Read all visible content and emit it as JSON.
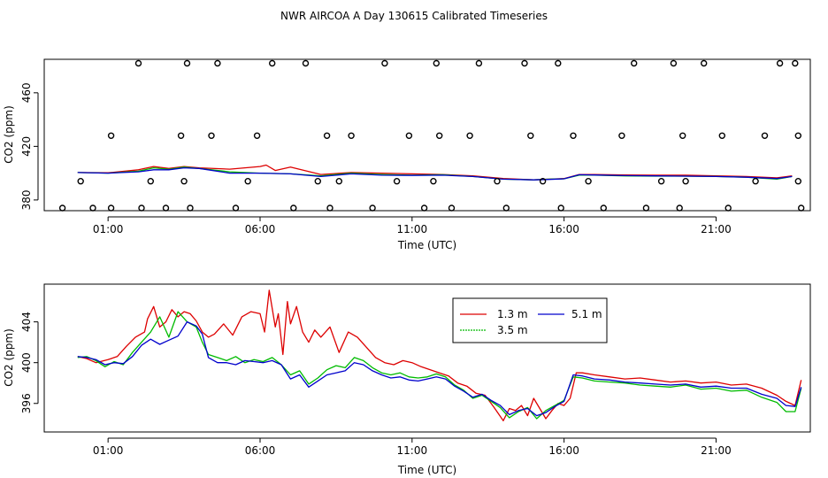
{
  "title": "NWR AIRCOA A  Day 130615  Calibrated Timeseries",
  "colors": {
    "1.3 m": "#dd0000",
    "3.5 m": "#00bb00",
    "5.1 m": "#0000cc",
    "markers": "#000000"
  },
  "chart_data": [
    {
      "type": "line",
      "xlabel": "Time (UTC)",
      "ylabel": "CO2 (ppm)",
      "x_ticks": [
        "01:00",
        "06:00",
        "11:00",
        "16:00",
        "21:00"
      ],
      "x_tick_hours": [
        1,
        6,
        11,
        16,
        21
      ],
      "y_ticks": [
        "380",
        "420",
        "460"
      ],
      "y_tick_values": [
        380,
        420,
        460
      ],
      "xlim": [
        -1.1,
        24.1
      ],
      "ylim": [
        372,
        485
      ],
      "legend": "none",
      "series": [
        {
          "color": "#dd0000",
          "x": [
            0,
            1,
            2,
            2.5,
            3,
            3.5,
            4,
            5,
            6,
            6.2,
            6.5,
            7,
            8,
            9,
            10,
            11,
            12,
            13,
            14,
            15,
            15.5,
            16,
            16.5,
            17,
            18,
            19,
            20,
            21,
            22,
            23,
            23.5
          ],
          "y": [
            400.5,
            400.3,
            402.5,
            405,
            403.5,
            405,
            404,
            403,
            405,
            406,
            402,
            404.5,
            399,
            400.5,
            400,
            399.5,
            399,
            398,
            396,
            395,
            395.5,
            396,
            399,
            399,
            398.7,
            398.5,
            398.5,
            398,
            397.5,
            396.5,
            398
          ]
        },
        {
          "color": "#00bb00",
          "x": [
            0,
            1,
            2,
            2.5,
            3,
            3.5,
            4,
            5,
            6,
            7,
            8,
            9,
            10,
            11,
            12,
            13,
            14,
            15,
            15.5,
            16,
            16.5,
            17,
            18,
            19,
            20,
            21,
            22,
            23,
            23.5
          ],
          "y": [
            400.5,
            400,
            401.5,
            404,
            403,
            404.5,
            403.5,
            401,
            400,
            399.5,
            398,
            400,
            399,
            398.5,
            398.8,
            397.5,
            395.5,
            395,
            395.5,
            395.8,
            398.5,
            398.5,
            398,
            397.8,
            397.8,
            397.5,
            397,
            395.5,
            397.5
          ]
        },
        {
          "color": "#0000cc",
          "x": [
            0,
            1,
            2,
            2.5,
            3,
            3.5,
            4,
            5,
            6,
            7,
            8,
            9,
            10,
            11,
            12,
            13,
            14,
            15,
            15.5,
            16,
            16.5,
            17,
            18,
            19,
            20,
            21,
            22,
            23,
            23.5
          ],
          "y": [
            400.5,
            400,
            401,
            402.5,
            402.5,
            404,
            403.5,
            400,
            400,
            399.5,
            397.5,
            399.5,
            398.5,
            398.3,
            398.5,
            397.5,
            395.5,
            395,
            395.3,
            395.8,
            398.8,
            398.6,
            398.2,
            398,
            397.8,
            397.5,
            397,
            396,
            397.5
          ]
        }
      ],
      "markers": {
        "symbol": "open-circle",
        "color": "#000000",
        "x": [
          -0.5,
          0.1,
          0.5,
          1.1,
          1.1,
          2,
          2.1,
          2.4,
          2.9,
          3.4,
          3.5,
          3.6,
          3.7,
          4.4,
          4.6,
          5.2,
          5.6,
          5.9,
          6.4,
          7.1,
          7.5,
          7.9,
          8.2,
          8.3,
          8.6,
          9,
          9.7,
          10.1,
          10.5,
          10.9,
          11.4,
          11.7,
          11.8,
          11.9,
          12.3,
          12.9,
          13.2,
          13.8,
          14.1,
          14.7,
          14.9,
          15.3,
          15.8,
          15.9,
          16.3,
          16.8,
          17.3,
          17.9,
          18.3,
          18.7,
          19.2,
          19.6,
          19.8,
          19.9,
          20,
          20.6,
          21.2,
          21.4,
          22.3,
          22.6,
          23.1,
          23.6,
          23.7,
          23.7,
          23.8
        ],
        "y": [
          374,
          394,
          374,
          428,
          374,
          482,
          374,
          394,
          374,
          428,
          394,
          482,
          374,
          428,
          482,
          374,
          394,
          428,
          482,
          374,
          482,
          394,
          428,
          374,
          394,
          428,
          374,
          482,
          394,
          428,
          374,
          394,
          482,
          428,
          374,
          428,
          482,
          394,
          374,
          482,
          428,
          394,
          482,
          374,
          428,
          394,
          374,
          428,
          482,
          374,
          394,
          482,
          374,
          428,
          394,
          482,
          428,
          374,
          394,
          428,
          482,
          482,
          428,
          394,
          374
        ]
      }
    },
    {
      "type": "line",
      "xlabel": "Time (UTC)",
      "ylabel": "CO2 (ppm)",
      "x_ticks": [
        "01:00",
        "06:00",
        "11:00",
        "16:00",
        "21:00"
      ],
      "x_tick_hours": [
        1,
        6,
        11,
        16,
        21
      ],
      "y_ticks": [
        "396",
        "400",
        "404"
      ],
      "y_tick_values": [
        396,
        400,
        404
      ],
      "xlim": [
        -1.1,
        24.1
      ],
      "ylim": [
        393.2,
        407.7
      ],
      "legend": "top-center",
      "series": [
        {
          "name": "1.3 m",
          "color": "#dd0000",
          "x": [
            0,
            0.3,
            0.6,
            1,
            1.3,
            1.6,
            1.9,
            2.2,
            2.3,
            2.5,
            2.7,
            2.9,
            3.1,
            3.3,
            3.5,
            3.7,
            3.9,
            4.1,
            4.3,
            4.5,
            4.8,
            5.1,
            5.4,
            5.7,
            6,
            6.15,
            6.3,
            6.5,
            6.6,
            6.75,
            6.9,
            7,
            7.2,
            7.4,
            7.6,
            7.8,
            8,
            8.3,
            8.6,
            8.9,
            9.2,
            9.5,
            9.8,
            10.1,
            10.4,
            10.7,
            11,
            11.3,
            11.6,
            11.9,
            12.2,
            12.5,
            12.8,
            13.1,
            13.4,
            13.7,
            14,
            14.2,
            14.4,
            14.6,
            14.8,
            15,
            15.2,
            15.4,
            15.6,
            15.8,
            16,
            16.2,
            16.4,
            16.6,
            17,
            17.5,
            18,
            18.5,
            19,
            19.5,
            20,
            20.5,
            21,
            21.5,
            22,
            22.5,
            23,
            23.3,
            23.6,
            23.8
          ],
          "y": [
            400.6,
            400.4,
            400,
            400.3,
            400.6,
            401.6,
            402.5,
            403,
            404.3,
            405.5,
            403.5,
            404,
            405.2,
            404.5,
            405,
            404.8,
            404.1,
            403,
            402.5,
            402.8,
            403.8,
            402.7,
            404.5,
            405,
            404.8,
            403,
            407.1,
            403.5,
            404.8,
            400.8,
            406,
            403.8,
            405.5,
            403,
            402,
            403.2,
            402.5,
            403.5,
            401,
            403,
            402.5,
            401.5,
            400.5,
            400,
            399.8,
            400.2,
            400,
            399.6,
            399.3,
            399,
            398.7,
            398,
            397.7,
            397,
            396.8,
            395.6,
            394.3,
            395.5,
            395.3,
            395.8,
            394.8,
            396.5,
            395.5,
            394.5,
            395.3,
            396,
            395.8,
            396.5,
            399,
            399,
            398.8,
            398.6,
            398.4,
            398.5,
            398.3,
            398.1,
            398.2,
            398,
            398.1,
            397.8,
            397.9,
            397.5,
            396.8,
            396.2,
            395.8,
            398.3
          ]
        },
        {
          "name": "3.5 m",
          "color": "#00bb00",
          "x": [
            0,
            0.3,
            0.6,
            0.9,
            1.2,
            1.5,
            1.8,
            2.1,
            2.4,
            2.7,
            3,
            3.3,
            3.6,
            3.9,
            4.1,
            4.3,
            4.6,
            4.9,
            5.2,
            5.5,
            5.8,
            6.1,
            6.4,
            6.7,
            7,
            7.3,
            7.6,
            7.9,
            8.2,
            8.5,
            8.8,
            9.1,
            9.4,
            9.7,
            10,
            10.3,
            10.6,
            10.9,
            11.2,
            11.5,
            11.8,
            12.1,
            12.4,
            12.7,
            13,
            13.3,
            13.6,
            13.9,
            14.2,
            14.5,
            14.8,
            15.1,
            15.4,
            15.7,
            16,
            16.3,
            16.6,
            17,
            17.5,
            18,
            18.5,
            19,
            19.5,
            20,
            20.5,
            21,
            21.5,
            22,
            22.5,
            23,
            23.3,
            23.6,
            23.8
          ],
          "y": [
            400.5,
            400.6,
            400.2,
            399.6,
            400.1,
            399.8,
            401,
            402,
            403,
            404.5,
            402.5,
            405,
            404,
            403.5,
            402,
            400.8,
            400.5,
            400.2,
            400.6,
            400,
            400.3,
            400.1,
            400.5,
            399.8,
            398.8,
            399.2,
            397.9,
            398.5,
            399.3,
            399.7,
            399.5,
            400.5,
            400.2,
            399.5,
            399,
            398.8,
            399,
            398.6,
            398.5,
            398.6,
            398.9,
            398.6,
            397.8,
            397.3,
            396.5,
            396.8,
            396.2,
            395.6,
            394.6,
            395.2,
            395.6,
            394.5,
            395.3,
            395.8,
            396.3,
            398.6,
            398.5,
            398.2,
            398.1,
            398,
            397.8,
            397.7,
            397.6,
            397.8,
            397.4,
            397.5,
            397.2,
            397.3,
            396.6,
            396.1,
            395.2,
            395.2,
            397.5
          ]
        },
        {
          "name": "5.1 m",
          "color": "#0000cc",
          "x": [
            0,
            0.3,
            0.6,
            0.9,
            1.2,
            1.5,
            1.8,
            2.1,
            2.4,
            2.7,
            3,
            3.3,
            3.6,
            3.9,
            4.1,
            4.3,
            4.6,
            4.9,
            5.2,
            5.5,
            5.8,
            6.1,
            6.4,
            6.7,
            7,
            7.3,
            7.6,
            7.9,
            8.2,
            8.5,
            8.8,
            9.1,
            9.4,
            9.7,
            10,
            10.3,
            10.6,
            10.9,
            11.2,
            11.5,
            11.8,
            12.1,
            12.4,
            12.7,
            13,
            13.3,
            13.6,
            13.9,
            14.2,
            14.5,
            14.8,
            15.1,
            15.4,
            15.7,
            16,
            16.3,
            16.6,
            17,
            17.5,
            18,
            18.5,
            19,
            19.5,
            20,
            20.5,
            21,
            21.5,
            22,
            22.5,
            23,
            23.3,
            23.6,
            23.8
          ],
          "y": [
            400.6,
            400.5,
            400.3,
            399.8,
            400,
            399.9,
            400.6,
            401.7,
            402.3,
            401.8,
            402.2,
            402.6,
            404,
            403.6,
            402.8,
            400.5,
            400,
            400,
            399.8,
            400.2,
            400.1,
            400,
            400.2,
            399.8,
            398.4,
            398.8,
            397.6,
            398.2,
            398.8,
            399,
            399.2,
            400,
            399.8,
            399.2,
            398.8,
            398.5,
            398.6,
            398.3,
            398.2,
            398.4,
            398.6,
            398.4,
            397.7,
            397.2,
            396.6,
            396.9,
            396.3,
            395.8,
            394.9,
            395.3,
            395.5,
            394.8,
            395.1,
            395.7,
            396.2,
            398.8,
            398.7,
            398.4,
            398.3,
            398.1,
            398,
            397.9,
            397.8,
            397.9,
            397.6,
            397.7,
            397.5,
            397.5,
            396.9,
            396.5,
            395.8,
            395.7,
            397.6
          ]
        }
      ]
    }
  ]
}
